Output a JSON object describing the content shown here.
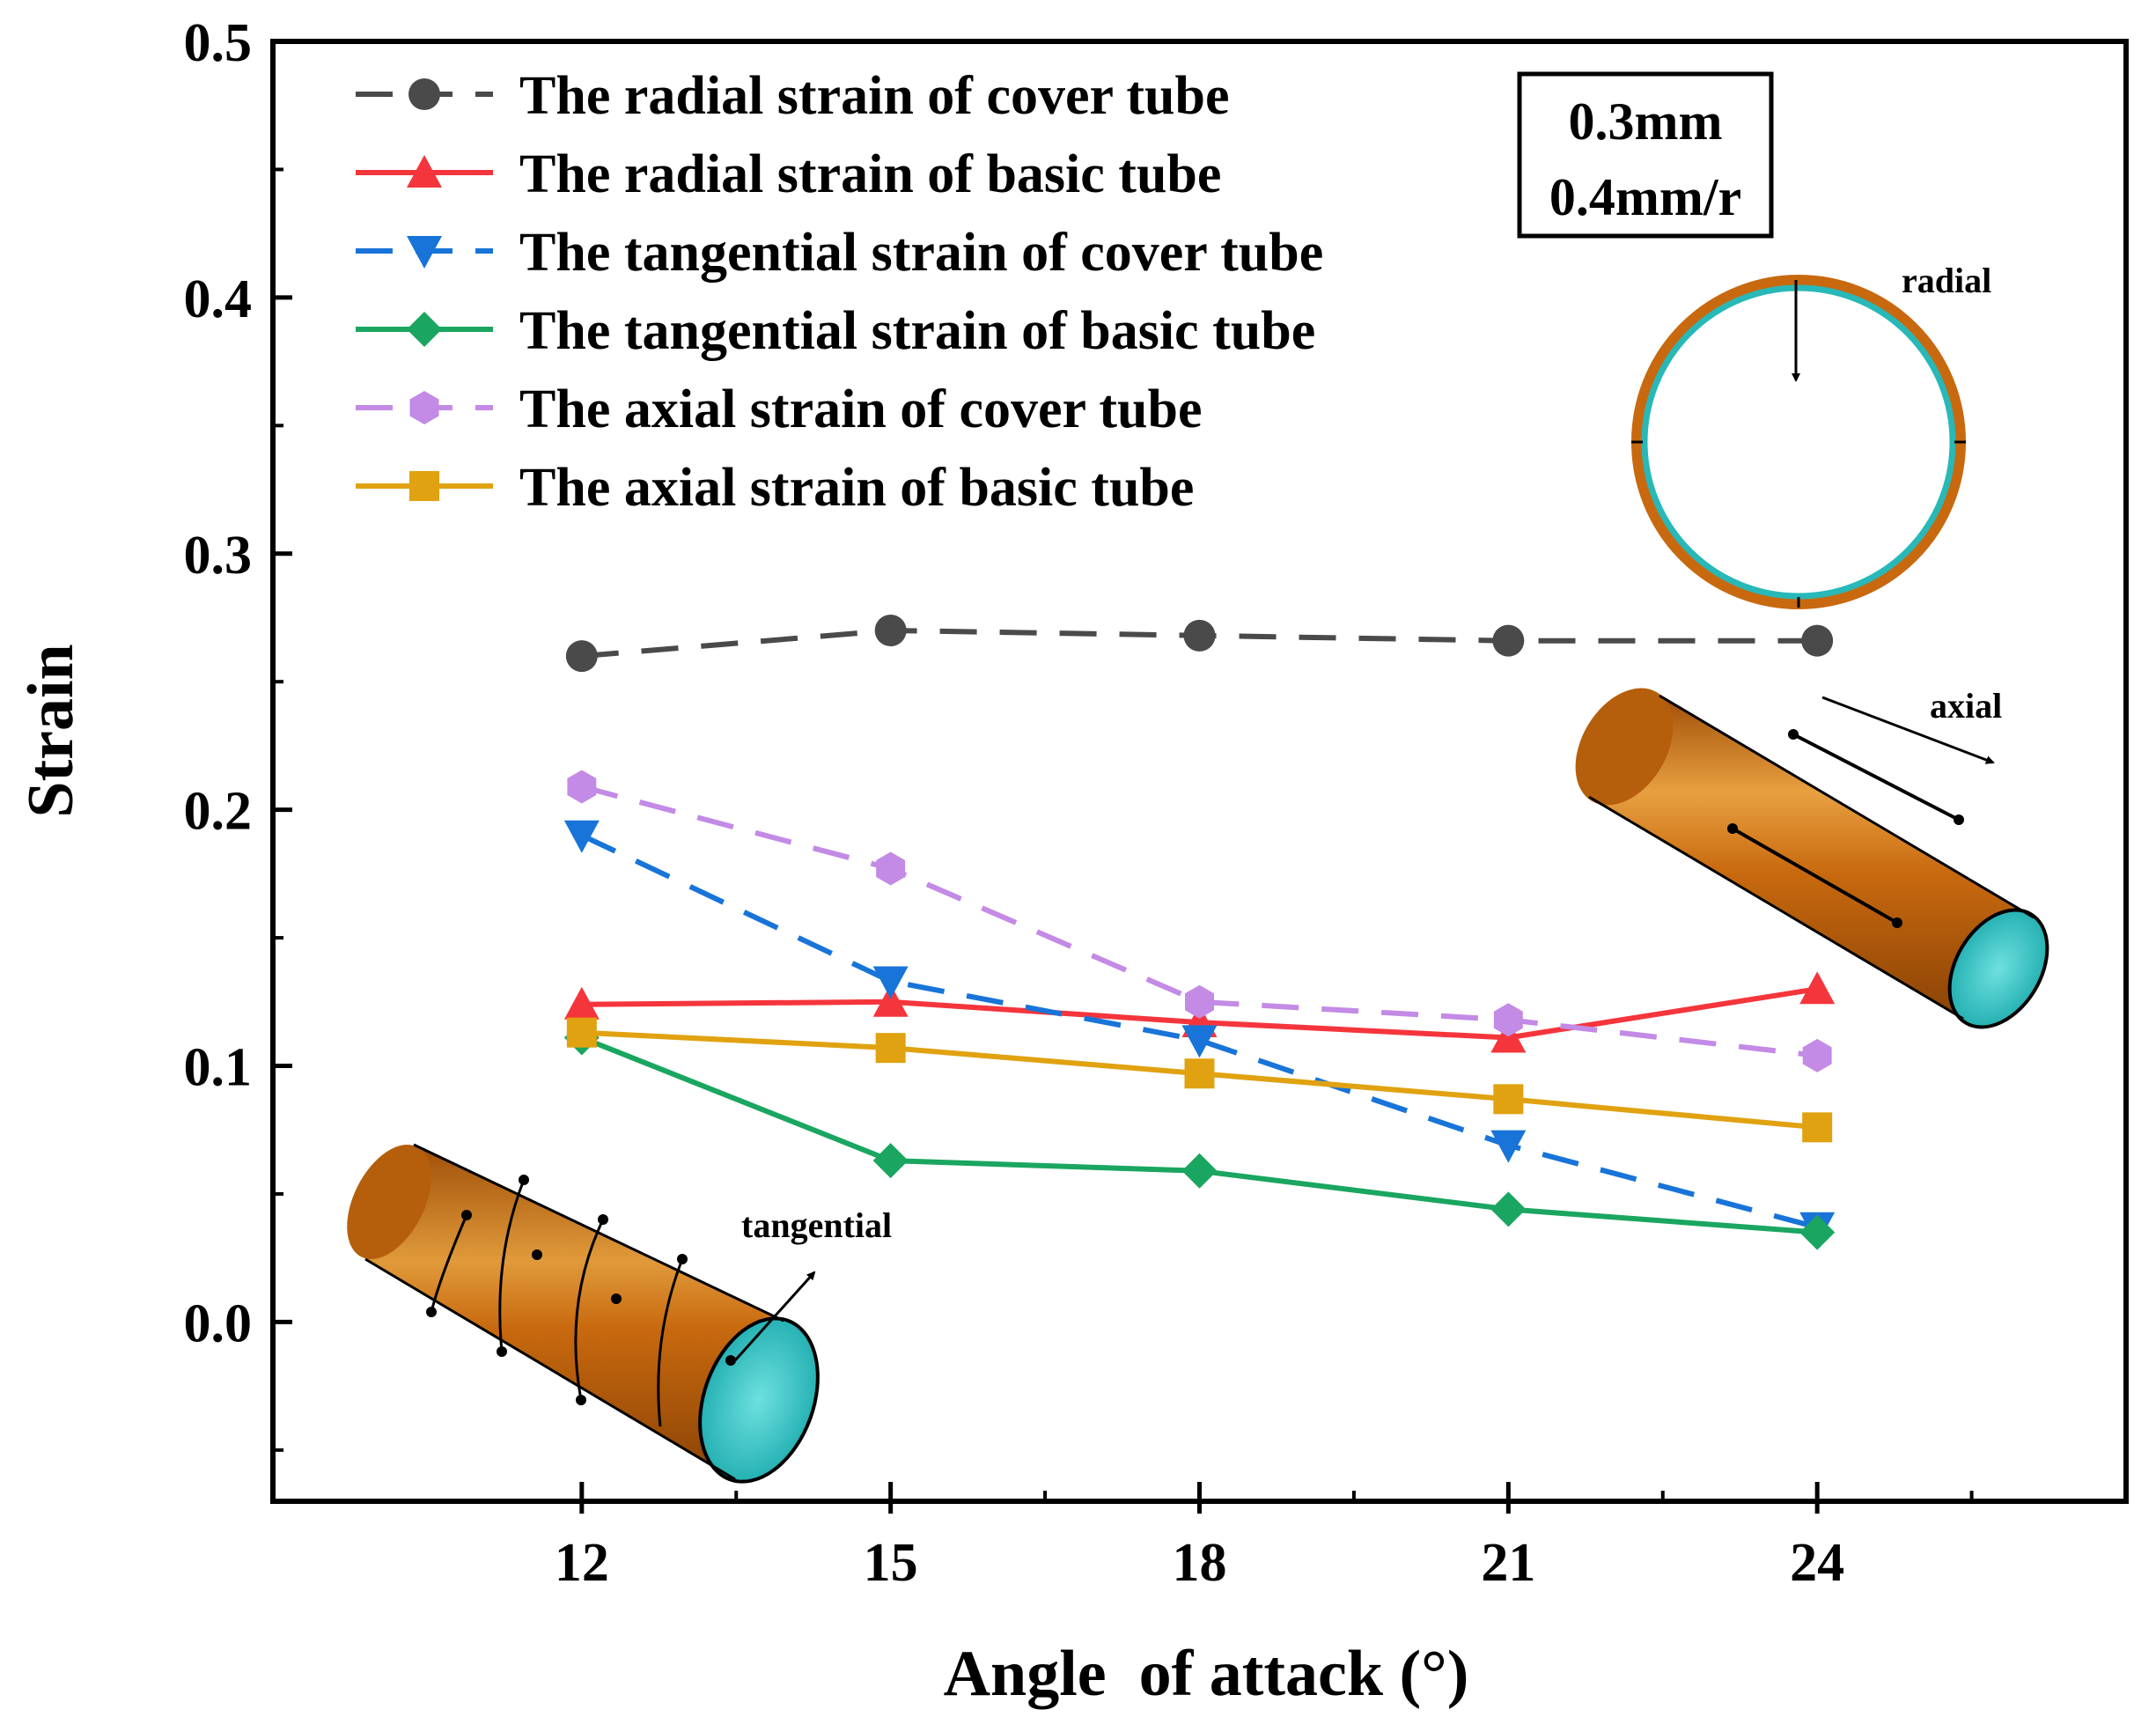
{
  "chart_data": {
    "type": "line",
    "xlabel": "Angle  of attack (°)",
    "ylabel": "Strain",
    "x": [
      12,
      15,
      18,
      21,
      24
    ],
    "xlim": [
      9,
      27
    ],
    "ylim": [
      -0.07,
      0.5
    ],
    "yticks": [
      0.0,
      0.1,
      0.2,
      0.3,
      0.4,
      0.5
    ],
    "ytick_labels": [
      "0.0",
      "0.1",
      "0.2",
      "0.3",
      "0.4",
      "0.5"
    ],
    "xtick_labels": [
      "12",
      "15",
      "18",
      "21",
      "24"
    ],
    "grid": false,
    "legend_position": "top-left",
    "series": [
      {
        "name": "The radial strain of cover tube",
        "values": [
          0.26,
          0.27,
          0.268,
          0.266,
          0.266
        ],
        "color": "#4a4a4a",
        "dash": true,
        "marker": "circle"
      },
      {
        "name": "The radial strain of basic tube",
        "values": [
          0.124,
          0.125,
          0.117,
          0.111,
          0.13
        ],
        "color": "#f5353c",
        "dash": false,
        "marker": "triangle-up"
      },
      {
        "name": "The tangential strain of cover tube",
        "values": [
          0.19,
          0.133,
          0.11,
          0.069,
          0.037
        ],
        "color": "#1874d8",
        "dash": true,
        "marker": "triangle-down"
      },
      {
        "name": "The tangential strain of basic tube",
        "values": [
          0.111,
          0.063,
          0.059,
          0.044,
          0.035
        ],
        "color": "#1aa660",
        "dash": false,
        "marker": "diamond"
      },
      {
        "name": "The axial strain of cover tube",
        "values": [
          0.209,
          0.177,
          0.125,
          0.118,
          0.104
        ],
        "color": "#c38ae6",
        "dash": true,
        "marker": "hexagon"
      },
      {
        "name": "The axial strain of basic tube",
        "values": [
          0.113,
          0.107,
          0.097,
          0.087,
          0.076
        ],
        "color": "#e0a210",
        "dash": false,
        "marker": "square"
      }
    ],
    "annotation_box": [
      "0.3mm",
      "0.4mm/r"
    ],
    "inset_labels": {
      "radial": "radial",
      "axial": "axial",
      "tangential": "tangential"
    }
  },
  "colors": {
    "tube_outer": "#c8690f",
    "tube_highlight": "#e8a040",
    "tube_inner": "#28c4c4"
  }
}
